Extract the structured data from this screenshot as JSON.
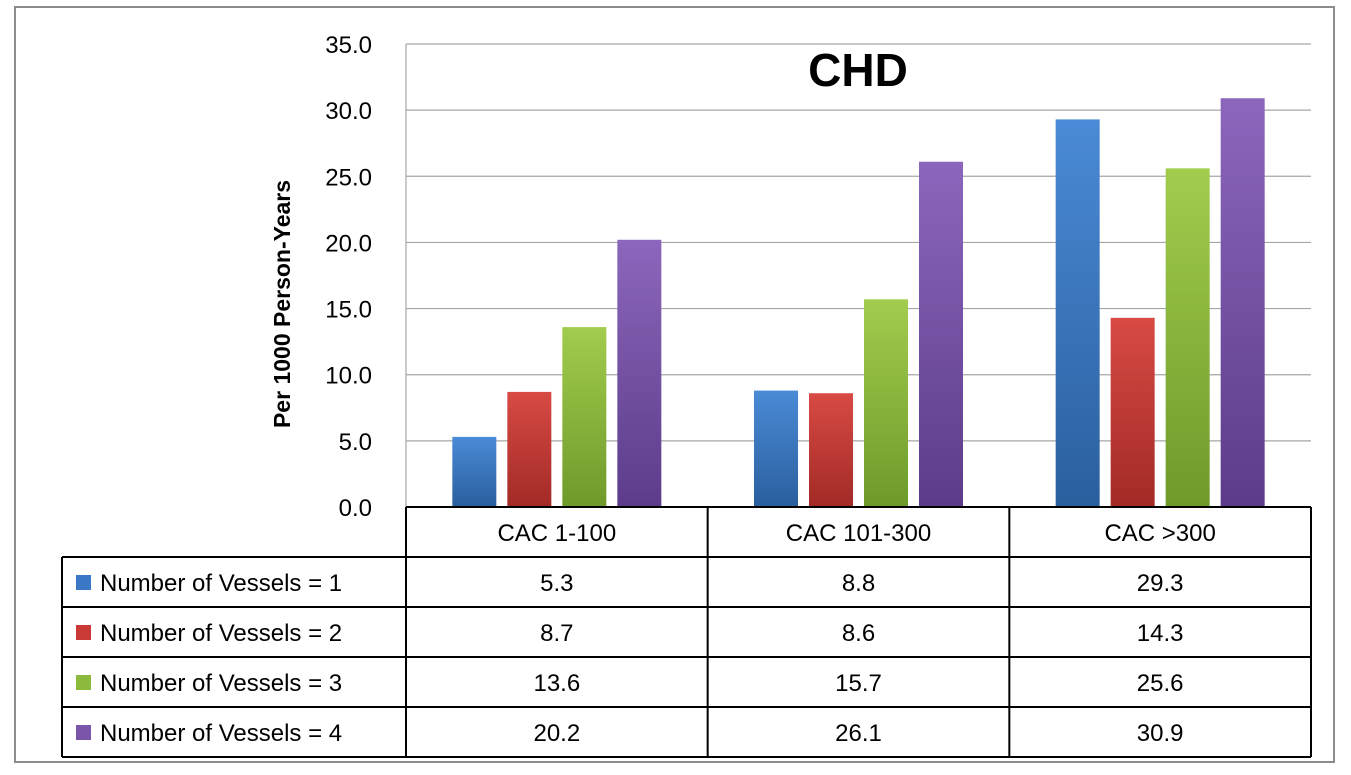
{
  "chart_data": {
    "type": "bar",
    "title": "CHD",
    "ylabel": "Per 1000 Person-Years",
    "ylim": [
      0,
      35
    ],
    "yticks": [
      "0.0",
      "5.0",
      "10.0",
      "15.0",
      "20.0",
      "25.0",
      "30.0",
      "35.0"
    ],
    "grid": true,
    "legend": "in data table",
    "categories": [
      "CAC 1-100",
      "CAC 101-300",
      "CAC >300"
    ],
    "series": [
      {
        "name": "Number of Vessels = 1",
        "color": "#3a78c6",
        "values": [
          5.3,
          8.8,
          29.3
        ],
        "labels": [
          "5.3",
          "8.8",
          "29.3"
        ]
      },
      {
        "name": "Number of Vessels = 2",
        "color": "#c93a36",
        "values": [
          8.7,
          8.6,
          14.3
        ],
        "labels": [
          "8.7",
          "8.6",
          "14.3"
        ]
      },
      {
        "name": "Number of Vessels = 3",
        "color": "#8cba3c",
        "values": [
          13.6,
          15.7,
          25.6
        ],
        "labels": [
          "13.6",
          "15.7",
          "25.6"
        ]
      },
      {
        "name": "Number of Vessels = 4",
        "color": "#7a55aa",
        "values": [
          20.2,
          26.1,
          30.9
        ],
        "labels": [
          "20.2",
          "26.1",
          "30.9"
        ]
      }
    ]
  }
}
